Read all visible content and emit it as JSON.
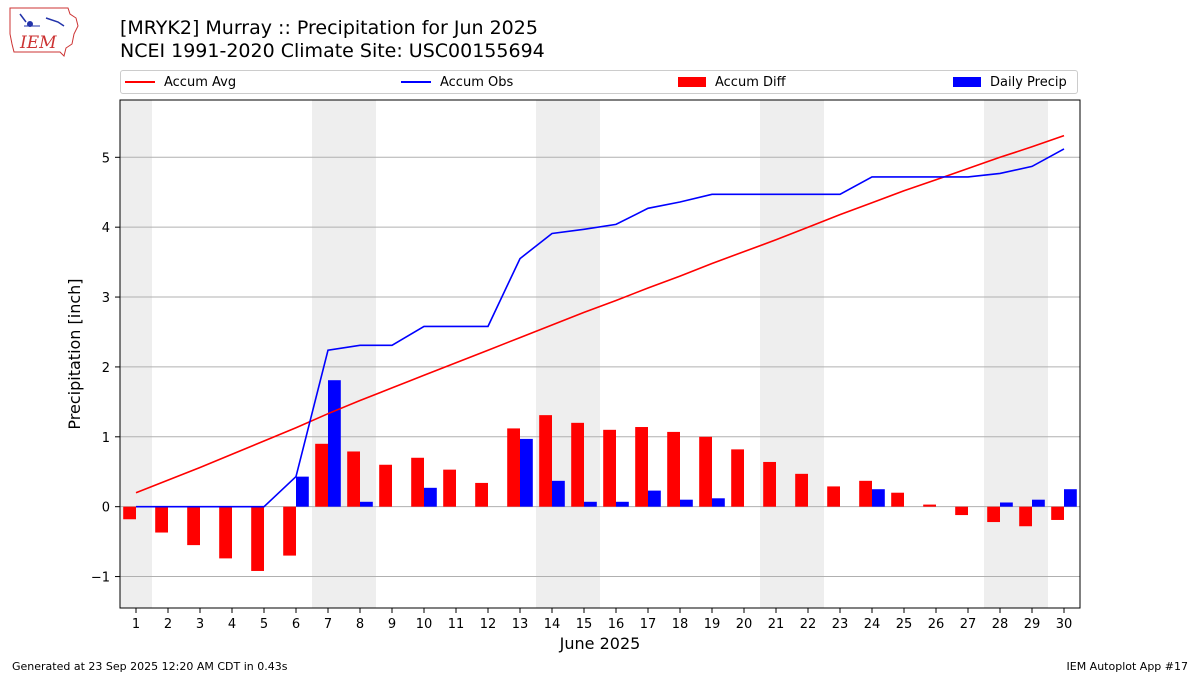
{
  "header": {
    "title_line1": "[MRYK2] Murray :: Precipitation for Jun 2025",
    "title_line2": "NCEI 1991-2020 Climate Site: USC00155694"
  },
  "logo": {
    "text": "IEM",
    "icon": "iowa-state-outline-logo"
  },
  "footer": {
    "left": "Generated at 23 Sep 2025 12:20 AM CDT in 0.43s",
    "right": "IEM Autoplot App #17"
  },
  "colors": {
    "avg": "#ff0000",
    "obs": "#0000ff",
    "diff": "#ff0000",
    "daily": "#0000ff",
    "weekend": "#eeeeee",
    "grid": "#b0b0b0"
  },
  "chart_data": {
    "type": "bar",
    "xlabel": "June 2025",
    "ylabel": "Precipitation [inch]",
    "ylim": [
      -1.45,
      5.82
    ],
    "xlim": [
      0.5,
      30.5
    ],
    "y_ticks": [
      -1,
      0,
      1,
      2,
      3,
      4,
      5
    ],
    "y_tick_labels": [
      "−1",
      "0",
      "1",
      "2",
      "3",
      "4",
      "5"
    ],
    "x_ticks": [
      1,
      2,
      3,
      4,
      5,
      6,
      7,
      8,
      9,
      10,
      11,
      12,
      13,
      14,
      15,
      16,
      17,
      18,
      19,
      20,
      21,
      22,
      23,
      24,
      25,
      26,
      27,
      28,
      29,
      30
    ],
    "x_tick_labels": [
      "1",
      "2",
      "3",
      "4",
      "5",
      "6",
      "7",
      "8",
      "9",
      "10",
      "11",
      "12",
      "13",
      "14",
      "15",
      "16",
      "17",
      "18",
      "19",
      "20",
      "21",
      "22",
      "23",
      "24",
      "25",
      "26",
      "27",
      "28",
      "29",
      "30"
    ],
    "grid": "y",
    "legend_position": "top",
    "shaded_days": [
      1,
      7,
      8,
      14,
      15,
      21,
      22,
      28,
      29
    ],
    "series": [
      {
        "name": "Accum Avg",
        "kind": "line",
        "values": [
          0.2,
          0.38,
          0.56,
          0.75,
          0.94,
          1.13,
          1.33,
          1.52,
          1.7,
          1.88,
          2.06,
          2.24,
          2.42,
          2.6,
          2.78,
          2.95,
          3.13,
          3.3,
          3.48,
          3.65,
          3.82,
          4.0,
          4.18,
          4.35,
          4.52,
          4.68,
          4.84,
          5.0,
          5.15,
          5.31
        ]
      },
      {
        "name": "Accum Obs",
        "kind": "line",
        "values": [
          0,
          0,
          0,
          0,
          0,
          0.43,
          2.24,
          2.31,
          2.31,
          2.58,
          2.58,
          2.58,
          3.55,
          3.91,
          3.97,
          4.04,
          4.27,
          4.36,
          4.47,
          4.47,
          4.47,
          4.47,
          4.47,
          4.72,
          4.72,
          4.72,
          4.72,
          4.77,
          4.87,
          5.12
        ]
      },
      {
        "name": "Accum Diff",
        "kind": "bar",
        "values": [
          -0.18,
          -0.37,
          -0.55,
          -0.74,
          -0.92,
          -0.7,
          0.9,
          0.79,
          0.6,
          0.7,
          0.53,
          0.34,
          1.12,
          1.31,
          1.2,
          1.1,
          1.14,
          1.07,
          1.0,
          0.82,
          0.64,
          0.47,
          0.29,
          0.37,
          0.2,
          0.03,
          -0.12,
          -0.22,
          -0.28,
          -0.19
        ]
      },
      {
        "name": "Daily Precip",
        "kind": "bar",
        "values": [
          0,
          0,
          0,
          0,
          0,
          0.43,
          1.81,
          0.07,
          0,
          0.27,
          0,
          0,
          0.97,
          0.37,
          0.07,
          0.07,
          0.23,
          0.1,
          0.12,
          0,
          0,
          0,
          0,
          0.25,
          0,
          0,
          0,
          0.06,
          0.1,
          0.25
        ]
      }
    ]
  }
}
